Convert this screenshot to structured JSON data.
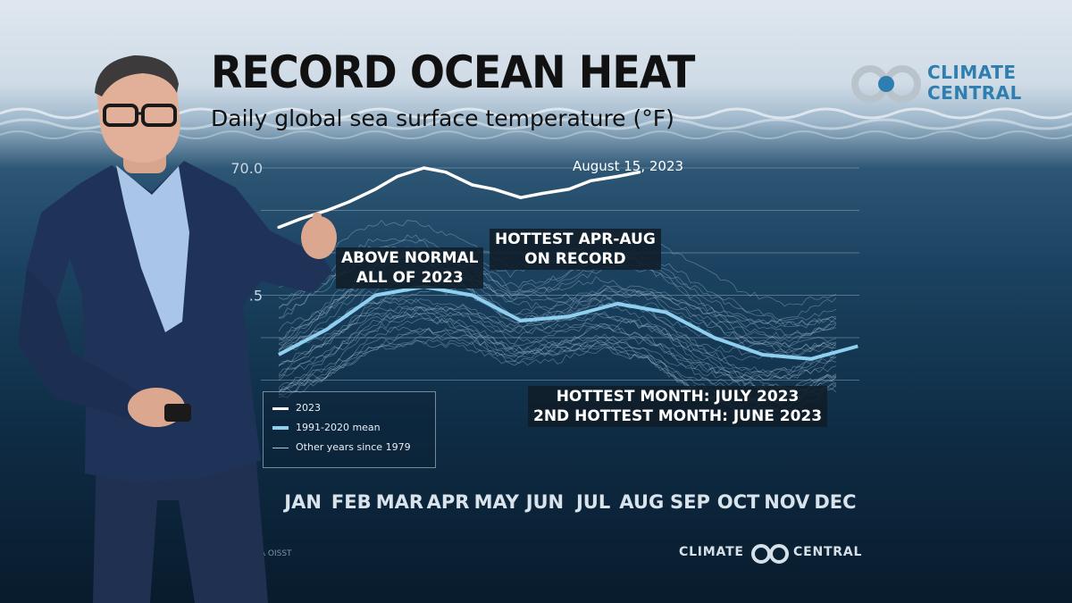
{
  "title": "RECORD OCEAN HEAT",
  "subtitle": "Daily global sea surface temperature (°F)",
  "logo": {
    "line1": "CLIMATE",
    "line2": "CENTRAL"
  },
  "footer": {
    "left": "CLIMATE",
    "right": "CENTRAL",
    "source": "Source: NOAA OISST"
  },
  "colors": {
    "series_2023": "#ffffff",
    "mean": "#8fcff0",
    "other_years": "#a9c6da",
    "callout_bg": "#101c28",
    "brand": "#2e7fb0"
  },
  "callouts": {
    "above_normal": [
      "ABOVE NORMAL",
      "ALL OF 2023"
    ],
    "hottest_apr_aug": [
      "HOTTEST APR-AUG",
      "ON RECORD"
    ],
    "hottest_month": [
      "HOTTEST MONTH: JULY 2023",
      "2ND HOTTEST MONTH: JUNE 2023"
    ]
  },
  "chart_data": {
    "type": "line",
    "title": "RECORD OCEAN HEAT",
    "subtitle": "Daily global sea surface temperature (°F)",
    "xlabel": "",
    "ylabel": "",
    "x_ticks": [
      "JAN",
      "FEB",
      "MAR",
      "APR",
      "MAY",
      "JUN",
      "JUL",
      "AUG",
      "SEP",
      "OCT",
      "NOV",
      "DEC"
    ],
    "y_ticks": [
      70.0,
      69.5,
      69.0,
      68.5,
      68.0,
      67.5
    ],
    "y_tick_labels": [
      "70.0",
      "",
      "",
      "68.5",
      "",
      ""
    ],
    "ylim": [
      67.0,
      70.0
    ],
    "grid": true,
    "legend_position": "bottom-left",
    "annotation": "August 15, 2023",
    "series": [
      {
        "name": "2023",
        "x": [
          "Jan 1",
          "Jan 15",
          "Feb 1",
          "Feb 15",
          "Mar 1",
          "Mar 15",
          "Apr 1",
          "Apr 15",
          "May 1",
          "May 15",
          "Jun 1",
          "Jun 15",
          "Jul 1",
          "Jul 15",
          "Aug 1",
          "Aug 15"
        ],
        "values": [
          69.3,
          69.4,
          69.5,
          69.6,
          69.75,
          69.9,
          70.0,
          69.95,
          69.8,
          69.75,
          69.65,
          69.7,
          69.75,
          69.85,
          69.9,
          69.95
        ]
      },
      {
        "name": "1991-2020 mean",
        "x": [
          "Jan 1",
          "Feb 1",
          "Mar 1",
          "Apr 1",
          "May 1",
          "Jun 1",
          "Jul 1",
          "Aug 1",
          "Sep 1",
          "Oct 1",
          "Nov 1",
          "Dec 1",
          "Dec 31"
        ],
        "values": [
          67.8,
          68.1,
          68.5,
          68.6,
          68.5,
          68.2,
          68.25,
          68.4,
          68.3,
          68.0,
          67.8,
          67.75,
          67.9
        ]
      },
      {
        "name": "Other years since 1979",
        "values": []
      }
    ]
  }
}
